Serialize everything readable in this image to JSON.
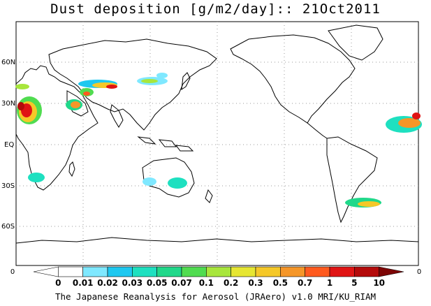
{
  "title": "Dust deposition [g/m2/day]:: 21Oct2011",
  "credit": "The Japanese Reanalysis for Aerosol (JRAero) v1.0 MRI/KU_RIAM",
  "lat_labels": [
    "60N",
    "30N",
    "EQ",
    "30S",
    "60S"
  ],
  "side_labels": {
    "left": "0",
    "right": "0"
  },
  "colorbar": {
    "labels": [
      "0",
      "0.01",
      "0.02",
      "0.03",
      "0.05",
      "0.07",
      "0.1",
      "0.2",
      "0.3",
      "0.5",
      "0.7",
      "1",
      "5",
      "10"
    ],
    "colors": [
      "#ffffff",
      "#ffffff",
      "#7fe8ff",
      "#1ec8f0",
      "#1ee0c0",
      "#20d88a",
      "#50dc50",
      "#a8e63c",
      "#e6e632",
      "#f5c828",
      "#f59628",
      "#ff5a1e",
      "#e01414",
      "#b40a0a",
      "#7d0505"
    ]
  }
}
